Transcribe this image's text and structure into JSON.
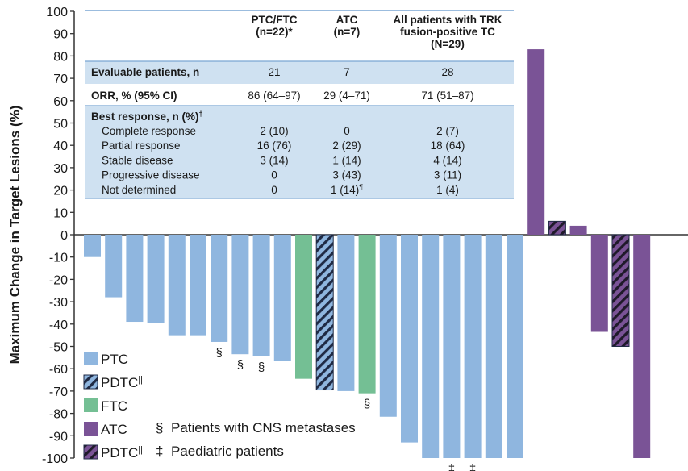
{
  "chart_data": {
    "type": "bar",
    "ylabel": "Maximum Change in Target Lesions (%)",
    "ylim": [
      -100,
      100
    ],
    "yticks": [
      100,
      90,
      80,
      70,
      60,
      50,
      40,
      30,
      20,
      10,
      0,
      -10,
      -20,
      -30,
      -40,
      -50,
      -60,
      -70,
      -80,
      -90,
      -100
    ],
    "grid": false,
    "legend": [
      {
        "key": "PTC",
        "label": "PTC",
        "color": "#8fb6df",
        "hatched": false
      },
      {
        "key": "PDTC_thyroid",
        "label": "PDTC",
        "sup": "||",
        "color": "#8fb6df",
        "hatched": true
      },
      {
        "key": "FTC",
        "label": "FTC",
        "color": "#74bf94",
        "hatched": false
      },
      {
        "key": "ATC",
        "label": "ATC",
        "color": "#7a5396",
        "hatched": false
      },
      {
        "key": "PDTC_atc",
        "label": "PDTC",
        "sup": "||",
        "color": "#7a5396",
        "hatched": true
      }
    ],
    "symbols": [
      {
        "mark": "§",
        "text": "Patients with CNS metastases"
      },
      {
        "mark": "‡",
        "text": "Paediatric patients"
      }
    ],
    "bars": [
      {
        "group": "PTC",
        "value": -10,
        "mark": ""
      },
      {
        "group": "PTC",
        "value": -28,
        "mark": ""
      },
      {
        "group": "PTC",
        "value": -39,
        "mark": ""
      },
      {
        "group": "PTC",
        "value": -39.5,
        "mark": ""
      },
      {
        "group": "PTC",
        "value": -45,
        "mark": ""
      },
      {
        "group": "PTC",
        "value": -45,
        "mark": ""
      },
      {
        "group": "PTC",
        "value": -48,
        "mark": "§"
      },
      {
        "group": "PTC",
        "value": -53.5,
        "mark": "§"
      },
      {
        "group": "PTC",
        "value": -54.5,
        "mark": "§"
      },
      {
        "group": "PTC",
        "value": -56.5,
        "mark": ""
      },
      {
        "group": "FTC",
        "value": -64.5,
        "mark": ""
      },
      {
        "group": "PDTC_thyroid",
        "value": -69.5,
        "mark": ""
      },
      {
        "group": "PTC",
        "value": -70,
        "mark": ""
      },
      {
        "group": "FTC",
        "value": -71,
        "mark": "§"
      },
      {
        "group": "PTC",
        "value": -81.5,
        "mark": ""
      },
      {
        "group": "PTC",
        "value": -93,
        "mark": ""
      },
      {
        "group": "PTC",
        "value": -100,
        "mark": ""
      },
      {
        "group": "PTC",
        "value": -100,
        "mark": "‡"
      },
      {
        "group": "PTC",
        "value": -100,
        "mark": "‡"
      },
      {
        "group": "PTC",
        "value": -100,
        "mark": ""
      },
      {
        "group": "PTC",
        "value": -100,
        "mark": ""
      },
      {
        "group": "ATC",
        "value": 83,
        "mark": ""
      },
      {
        "group": "PDTC_atc",
        "value": 6,
        "mark": ""
      },
      {
        "group": "ATC",
        "value": 4,
        "mark": ""
      },
      {
        "group": "ATC",
        "value": -43.5,
        "mark": ""
      },
      {
        "group": "PDTC_atc",
        "value": -50,
        "mark": ""
      },
      {
        "group": "ATC",
        "value": -100,
        "mark": ""
      }
    ]
  },
  "table": {
    "headers": [
      {
        "lines": [
          ""
        ]
      },
      {
        "lines": [
          "PTC/FTC",
          "(n=22)*"
        ]
      },
      {
        "lines": [
          "ATC",
          "(n=7)"
        ]
      },
      {
        "lines": [
          "All patients with TRK",
          "fusion-positive TC",
          "(N=29)"
        ]
      }
    ],
    "rows": [
      {
        "label": "Evaluable patients, n",
        "bold": true,
        "values": [
          "21",
          "7",
          "28"
        ]
      },
      {
        "label": "ORR, % (95% CI)",
        "bold": true,
        "values": [
          "86 (64–97)",
          "29 (4–71)",
          "71 (51–87)"
        ]
      }
    ],
    "best_response": {
      "title": "Best response, n (%)",
      "title_sup": "†",
      "rows": [
        {
          "label": "Complete response",
          "values": [
            "2 (10)",
            "0",
            "2 (7)"
          ],
          "sups": [
            "",
            "",
            ""
          ]
        },
        {
          "label": "Partial response",
          "values": [
            "16 (76)",
            "2 (29)",
            "18 (64)"
          ],
          "sups": [
            "",
            "",
            ""
          ]
        },
        {
          "label": "Stable disease",
          "values": [
            "3 (14)",
            "1 (14)",
            "4 (14)"
          ],
          "sups": [
            "",
            "",
            ""
          ]
        },
        {
          "label": "Progressive disease",
          "values": [
            "0",
            "3 (43)",
            "3 (11)"
          ],
          "sups": [
            "",
            "",
            ""
          ]
        },
        {
          "label": "Not determined",
          "values": [
            "0",
            "1 (14)",
            "1 (4)"
          ],
          "sups": [
            "",
            "¶",
            ""
          ]
        }
      ]
    }
  }
}
